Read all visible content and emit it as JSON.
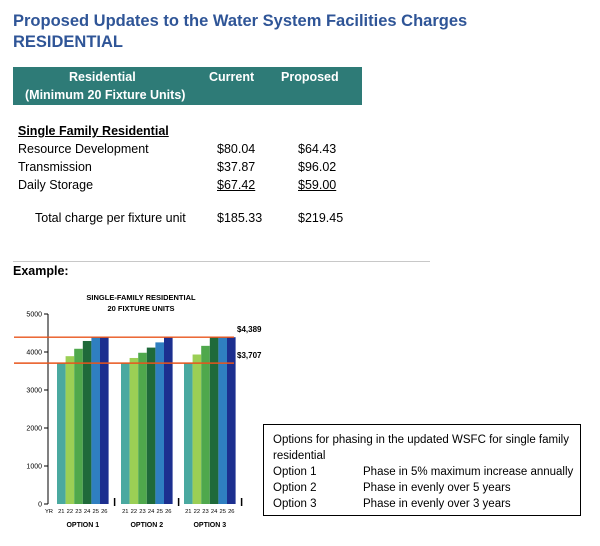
{
  "title_line1": "Proposed Updates to the Water System Facilities Charges",
  "title_line2": "RESIDENTIAL",
  "table": {
    "col1_line1": "Residential",
    "col1_line2": "(Minimum 20 Fixture Units)",
    "col2": "Current",
    "col3": "Proposed",
    "section": "Single Family Residential",
    "rows": [
      {
        "label": "Resource Development",
        "current": "$80.04",
        "proposed": "$64.43"
      },
      {
        "label": "Transmission",
        "current": "$37.87",
        "proposed": "$96.02"
      },
      {
        "label": "Daily Storage",
        "current": "$67.42",
        "proposed": "$59.00"
      }
    ],
    "total_label": "Total charge per fixture unit",
    "total_current": "$185.33",
    "total_proposed": "$219.45"
  },
  "example_label": "Example:",
  "chart_data": {
    "type": "bar",
    "title_line1": "SINGLE-FAMILY RESIDENTIAL",
    "title_line2": "20 FIXTURE UNITS",
    "ylim": [
      0,
      5000
    ],
    "yticks": [
      0,
      1000,
      2000,
      3000,
      4000,
      5000
    ],
    "ytick_labels": [
      "0",
      "1000",
      "2000",
      "3000",
      "4000",
      "5000"
    ],
    "x_label_prefix": "YR",
    "year_labels": [
      "21",
      "22",
      "23",
      "24",
      "25",
      "26"
    ],
    "groups": [
      {
        "name": "OPTION 1",
        "values": [
          3707,
          3890,
          4085,
          4290,
          4389,
          4389
        ]
      },
      {
        "name": "OPTION 2",
        "values": [
          3707,
          3843,
          3980,
          4116,
          4253,
          4389
        ]
      },
      {
        "name": "OPTION 3",
        "values": [
          3707,
          3934,
          4162,
          4389,
          4389,
          4389
        ]
      }
    ],
    "reference_lines": [
      {
        "value": 4389,
        "label": "$4,389"
      },
      {
        "value": 3707,
        "label": "$3,707"
      }
    ],
    "colors": {
      "bars": [
        "#4aa9a0",
        "#9bcf55",
        "#4fa84c",
        "#1f6a3a",
        "#2f7fc1",
        "#1c2f8f"
      ],
      "reference_line": "#e8541c"
    }
  },
  "options_box": {
    "intro": "Options for phasing in the updated WSFC for single family residential",
    "options": [
      {
        "name": "Option 1",
        "desc": "Phase in 5% maximum increase annually"
      },
      {
        "name": "Option 2",
        "desc": "Phase in evenly over 5 years"
      },
      {
        "name": "Option 3",
        "desc": "Phase in evenly over 3 years"
      }
    ]
  }
}
